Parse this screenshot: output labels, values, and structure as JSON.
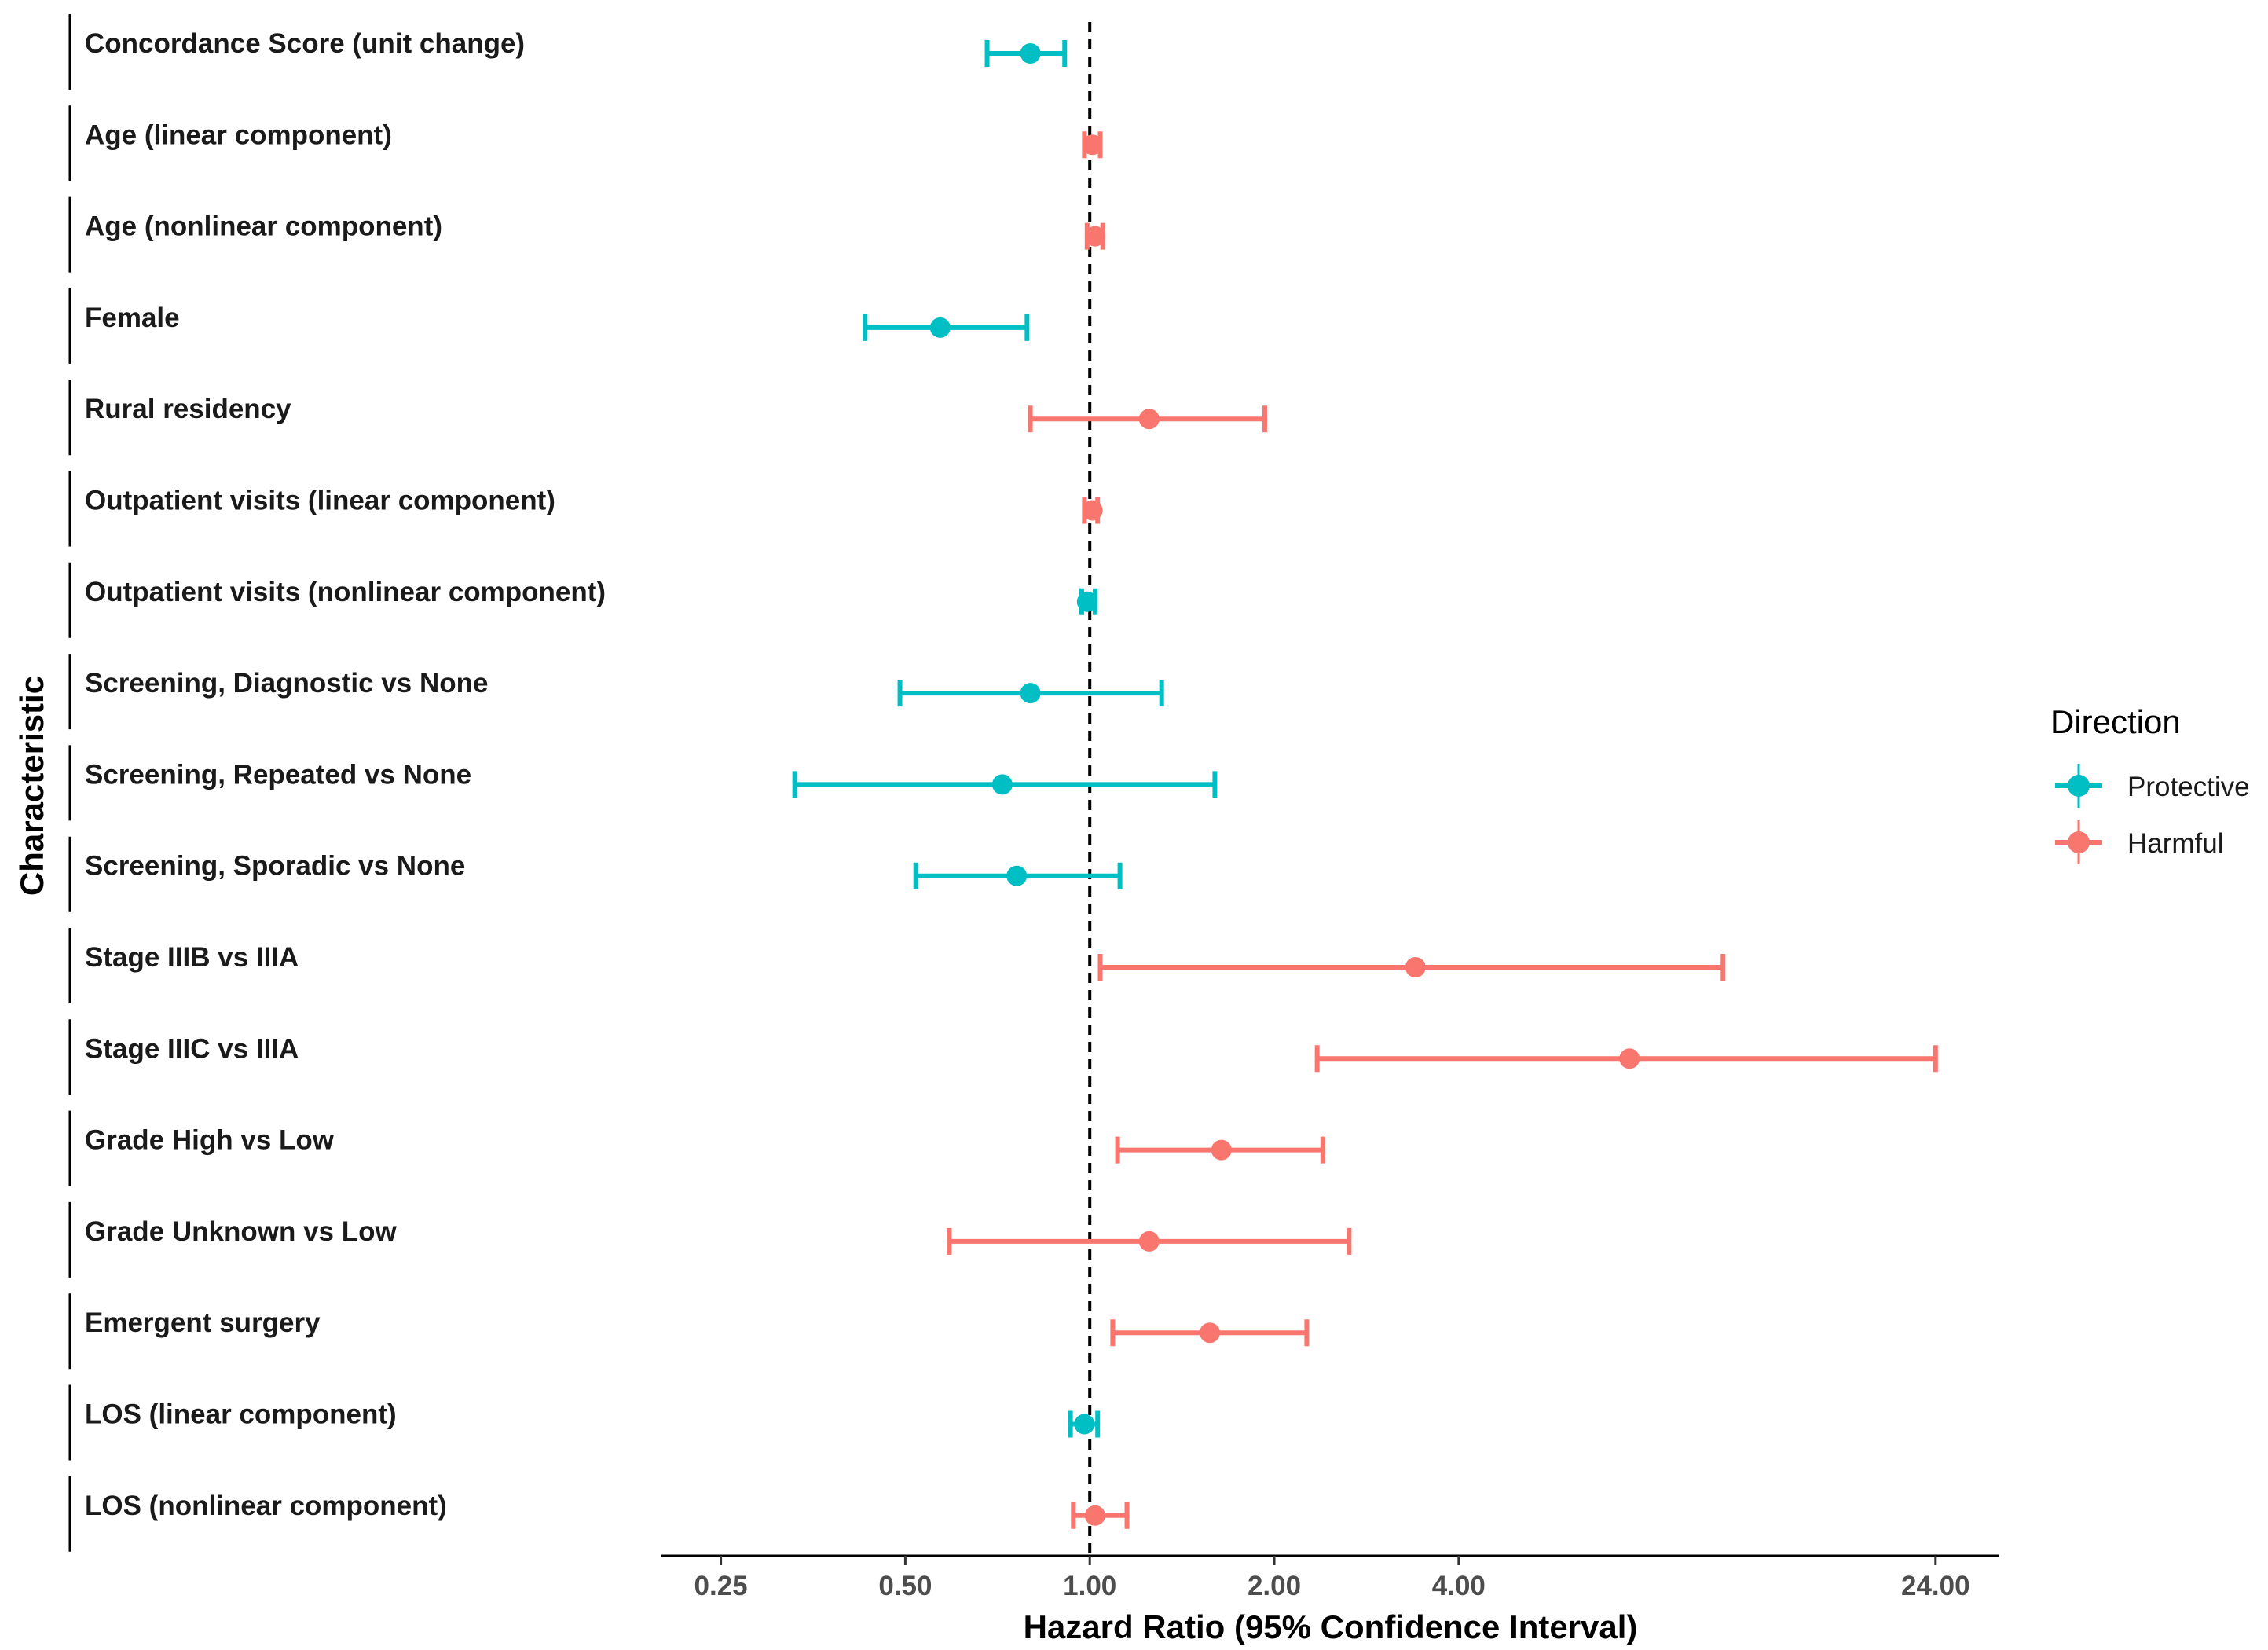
{
  "chart_data": {
    "type": "forest",
    "xlabel": "Hazard Ratio (95% Confidence Interval)",
    "ylabel": "Characteristic",
    "x_scale": "log2",
    "xlim": [
      0.2,
      30.5
    ],
    "reference_line": 1.0,
    "x_ticks": [
      {
        "value": 0.25,
        "label": "0.25"
      },
      {
        "value": 0.5,
        "label": "0.50"
      },
      {
        "value": 1.0,
        "label": "1.00"
      },
      {
        "value": 2.0,
        "label": "2.00"
      },
      {
        "value": 4.0,
        "label": "4.00"
      },
      {
        "value": 24.0,
        "label": "24.00"
      }
    ],
    "legend": {
      "title": "Direction",
      "placement": "right",
      "entries": [
        {
          "name": "Protective",
          "color": "#00BFC4"
        },
        {
          "name": "Harmful",
          "color": "#F8766D"
        }
      ]
    },
    "rows": [
      {
        "label": "Concordance Score (unit change)",
        "hr": 0.8,
        "lower": 0.68,
        "upper": 0.91,
        "direction": "Protective"
      },
      {
        "label": "Age (linear component)",
        "hr": 1.01,
        "lower": 0.98,
        "upper": 1.04,
        "direction": "Harmful"
      },
      {
        "label": "Age (nonlinear component)",
        "hr": 1.02,
        "lower": 0.99,
        "upper": 1.05,
        "direction": "Harmful"
      },
      {
        "label": "Female",
        "hr": 0.57,
        "lower": 0.43,
        "upper": 0.79,
        "direction": "Protective"
      },
      {
        "label": "Rural residency",
        "hr": 1.25,
        "lower": 0.8,
        "upper": 1.93,
        "direction": "Harmful"
      },
      {
        "label": "Outpatient visits (linear component)",
        "hr": 1.01,
        "lower": 0.98,
        "upper": 1.03,
        "direction": "Harmful"
      },
      {
        "label": "Outpatient visits (nonlinear component)",
        "hr": 0.99,
        "lower": 0.97,
        "upper": 1.02,
        "direction": "Protective"
      },
      {
        "label": "Screening, Diagnostic vs None",
        "hr": 0.8,
        "lower": 0.49,
        "upper": 1.31,
        "direction": "Protective"
      },
      {
        "label": "Screening, Repeated vs None",
        "hr": 0.72,
        "lower": 0.33,
        "upper": 1.6,
        "direction": "Protective"
      },
      {
        "label": "Screening, Sporadic vs None",
        "hr": 0.76,
        "lower": 0.52,
        "upper": 1.12,
        "direction": "Protective"
      },
      {
        "label": "Stage IIIB vs IIIA",
        "hr": 3.4,
        "lower": 1.04,
        "upper": 10.8,
        "direction": "Harmful"
      },
      {
        "label": "Stage IIIC vs IIIA",
        "hr": 7.6,
        "lower": 2.35,
        "upper": 24.0,
        "direction": "Harmful"
      },
      {
        "label": "Grade High vs Low",
        "hr": 1.64,
        "lower": 1.11,
        "upper": 2.4,
        "direction": "Harmful"
      },
      {
        "label": "Grade Unknown vs Low",
        "hr": 1.25,
        "lower": 0.59,
        "upper": 2.65,
        "direction": "Harmful"
      },
      {
        "label": "Emergent surgery",
        "hr": 1.57,
        "lower": 1.09,
        "upper": 2.26,
        "direction": "Harmful"
      },
      {
        "label": "LOS (linear component)",
        "hr": 0.98,
        "lower": 0.93,
        "upper": 1.03,
        "direction": "Protective"
      },
      {
        "label": "LOS (nonlinear component)",
        "hr": 1.02,
        "lower": 0.94,
        "upper": 1.15,
        "direction": "Harmful"
      }
    ]
  }
}
